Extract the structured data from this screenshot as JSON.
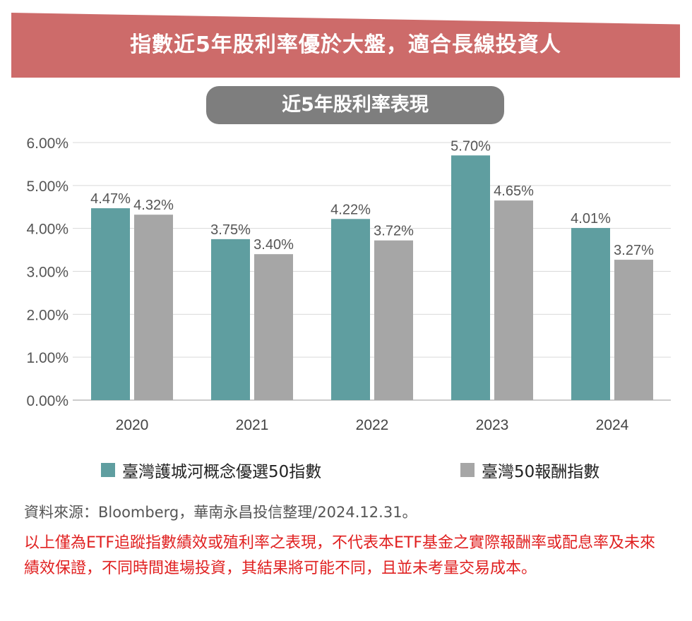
{
  "header": {
    "title": "指數近5年股利率優於大盤，適合長線投資人",
    "subtitle": "近5年股利率表現"
  },
  "chart_data": {
    "type": "bar",
    "categories": [
      "2020",
      "2021",
      "2022",
      "2023",
      "2024"
    ],
    "series": [
      {
        "name": "臺灣護城河概念優選50指數",
        "values": [
          4.47,
          3.75,
          4.22,
          5.7,
          4.01
        ],
        "labels": [
          "4.47%",
          "3.75%",
          "4.22%",
          "5.70%",
          "4.01%"
        ],
        "color": "#5f9ea0"
      },
      {
        "name": "臺灣50報酬指數",
        "values": [
          4.32,
          3.4,
          3.72,
          4.65,
          3.27
        ],
        "labels": [
          "4.32%",
          "3.40%",
          "3.72%",
          "4.65%",
          "3.27%"
        ],
        "color": "#a6a6a6"
      }
    ],
    "ylim": [
      0,
      6
    ],
    "yticks": [
      "0.00%",
      "1.00%",
      "2.00%",
      "3.00%",
      "4.00%",
      "5.00%",
      "6.00%"
    ],
    "grid": true,
    "legend": "bottom"
  },
  "footer": {
    "source": "資料來源：Bloomberg，華南永昌投信整理/2024.12.31。",
    "disclaimer": "以上僅為ETF追蹤指數績效或殖利率之表現，不代表本ETF基金之實際報酬率或配息率及未來績效保證，不同時間進場投資，其結果將可能不同，且並未考量交易成本。"
  }
}
